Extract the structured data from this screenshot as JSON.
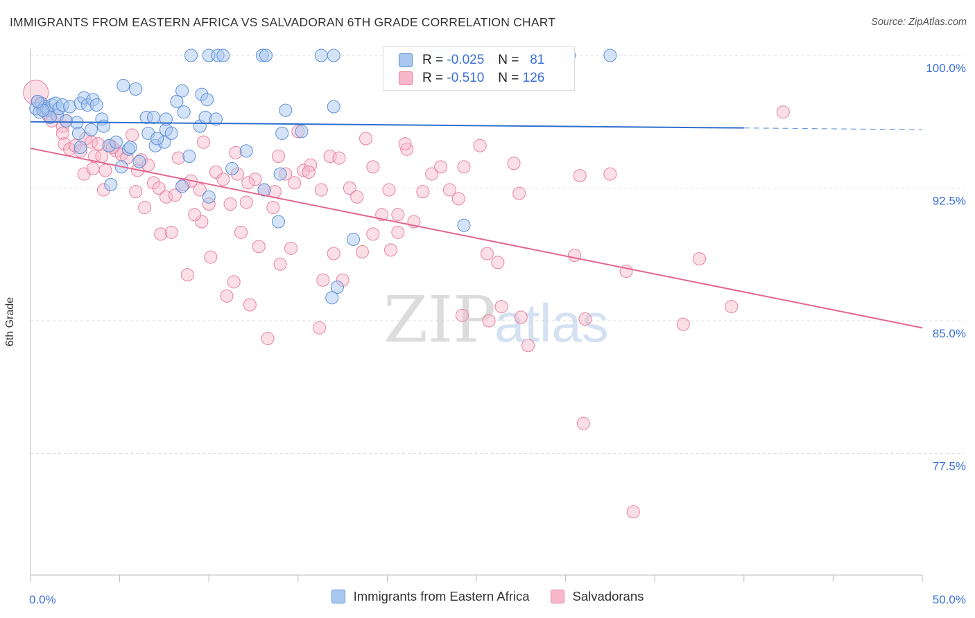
{
  "title": "IMMIGRANTS FROM EASTERN AFRICA VS SALVADORAN 6TH GRADE CORRELATION CHART",
  "source": "Source: ZipAtlas.com",
  "watermark": {
    "zip": "ZIP",
    "atlas": "atlas"
  },
  "legend": {
    "rows": [
      {
        "r_label": "R =",
        "r_value": "-0.025",
        "n_label": "N =",
        "n_value": "81"
      },
      {
        "r_label": "R =",
        "r_value": "-0.510",
        "n_label": "N =",
        "n_value": "126"
      }
    ]
  },
  "bottom_legend": {
    "series1": "Immigrants from Eastern Africa",
    "series2": "Salvadorans"
  },
  "colors": {
    "blue_fill": "#a9c8f0",
    "blue_stroke": "#5b8fd6",
    "blue_line": "#2f6fcf",
    "pink_fill": "#f6b8ca",
    "pink_stroke": "#e8809f",
    "pink_line": "#e2668f",
    "tick_label": "#3a6fd8",
    "grid": "#dddddd"
  },
  "chart_data": {
    "type": "scatter",
    "title": "IMMIGRANTS FROM EASTERN AFRICA VS SALVADORAN 6TH GRADE CORRELATION CHART",
    "xlabel": "",
    "ylabel": "6th Grade",
    "xlim": [
      0,
      50
    ],
    "ylim": [
      70.0,
      101.5
    ],
    "x_tick_labels": [
      "0.0%",
      "50.0%"
    ],
    "y_ticks": [
      100.0,
      92.5,
      85.0,
      77.5
    ],
    "y_tick_labels": [
      "100.0%",
      "92.5%",
      "85.0%",
      "77.5%"
    ],
    "grid": true,
    "legend_position": "top-center",
    "series": [
      {
        "name": "Immigrants from Eastern Africa",
        "color": "#a9c8f0",
        "R": -0.025,
        "N": 81,
        "trend": {
          "x0": 0,
          "y0": 96.25,
          "x1": 40,
          "y1": 95.9,
          "dashed_to_x": 50,
          "dashed_to_y": 95.8
        },
        "points": [
          [
            0.3,
            97.0
          ],
          [
            0.5,
            96.8
          ],
          [
            0.6,
            97.3
          ],
          [
            0.8,
            97.1
          ],
          [
            0.9,
            97.0
          ],
          [
            1.0,
            96.9
          ],
          [
            1.2,
            97.2
          ],
          [
            1.4,
            97.3
          ],
          [
            1.5,
            96.6
          ],
          [
            1.6,
            97.0
          ],
          [
            1.8,
            97.2
          ],
          [
            2.0,
            96.3
          ],
          [
            2.2,
            97.1
          ],
          [
            2.6,
            96.2
          ],
          [
            2.8,
            97.3
          ],
          [
            3.0,
            97.6
          ],
          [
            3.2,
            97.2
          ],
          [
            3.5,
            97.5
          ],
          [
            3.7,
            97.2
          ],
          [
            3.4,
            95.8
          ],
          [
            2.7,
            95.6
          ],
          [
            2.8,
            94.8
          ],
          [
            4.0,
            96.4
          ],
          [
            4.1,
            96.0
          ],
          [
            5.2,
            98.3
          ],
          [
            5.9,
            98.1
          ],
          [
            4.4,
            94.9
          ],
          [
            5.5,
            94.7
          ],
          [
            5.6,
            94.8
          ],
          [
            4.8,
            95.1
          ],
          [
            6.5,
            96.5
          ],
          [
            6.6,
            95.6
          ],
          [
            6.9,
            96.5
          ],
          [
            7.0,
            94.9
          ],
          [
            7.5,
            95.1
          ],
          [
            7.1,
            95.3
          ],
          [
            7.6,
            95.8
          ],
          [
            7.9,
            95.6
          ],
          [
            7.6,
            96.4
          ],
          [
            8.6,
            96.8
          ],
          [
            8.2,
            97.4
          ],
          [
            8.5,
            98.0
          ],
          [
            9.6,
            97.8
          ],
          [
            9.9,
            97.5
          ],
          [
            9.5,
            96.0
          ],
          [
            9.8,
            96.5
          ],
          [
            10.4,
            96.4
          ],
          [
            8.9,
            94.3
          ],
          [
            5.1,
            93.7
          ],
          [
            4.5,
            92.7
          ],
          [
            6.1,
            94.0
          ],
          [
            8.5,
            92.6
          ],
          [
            10.0,
            92.0
          ],
          [
            11.3,
            93.6
          ],
          [
            12.1,
            94.6
          ],
          [
            13.1,
            92.4
          ],
          [
            14.0,
            93.3
          ],
          [
            14.1,
            95.6
          ],
          [
            14.3,
            96.9
          ],
          [
            17.0,
            97.1
          ],
          [
            13.9,
            90.6
          ],
          [
            15.2,
            95.7
          ],
          [
            24.3,
            90.4
          ],
          [
            18.1,
            89.6
          ],
          [
            17.2,
            86.9
          ],
          [
            16.9,
            86.3
          ],
          [
            9.0,
            100.0
          ],
          [
            10.0,
            100.0
          ],
          [
            10.5,
            100.0
          ],
          [
            10.8,
            100.0
          ],
          [
            13.0,
            100.0
          ],
          [
            13.2,
            100.0
          ],
          [
            16.3,
            100.0
          ],
          [
            17.0,
            100.0
          ],
          [
            22.8,
            100.0
          ],
          [
            24.0,
            100.0
          ],
          [
            30.2,
            100.0
          ],
          [
            32.5,
            100.0
          ],
          [
            1.1,
            96.5
          ],
          [
            0.7,
            96.9
          ],
          [
            0.4,
            97.4
          ]
        ]
      },
      {
        "name": "Salvadorans",
        "color": "#f6b8ca",
        "R": -0.51,
        "N": 126,
        "trend": {
          "x0": 0,
          "y0": 94.75,
          "x1": 50,
          "y1": 84.6
        },
        "points": [
          [
            0.3,
            97.9
          ],
          [
            0.4,
            97.4
          ],
          [
            0.6,
            97.2
          ],
          [
            0.8,
            96.9
          ],
          [
            1.0,
            96.6
          ],
          [
            1.2,
            96.3
          ],
          [
            1.5,
            96.6
          ],
          [
            1.8,
            96.0
          ],
          [
            2.0,
            96.3
          ],
          [
            1.8,
            95.6
          ],
          [
            1.9,
            95.0
          ],
          [
            2.2,
            94.7
          ],
          [
            2.5,
            94.9
          ],
          [
            2.8,
            94.6
          ],
          [
            3.1,
            95.3
          ],
          [
            3.4,
            95.1
          ],
          [
            3.6,
            94.3
          ],
          [
            3.8,
            95.0
          ],
          [
            4.0,
            94.3
          ],
          [
            4.2,
            93.5
          ],
          [
            4.5,
            94.9
          ],
          [
            4.8,
            94.6
          ],
          [
            5.1,
            94.4
          ],
          [
            5.4,
            94.2
          ],
          [
            5.7,
            95.5
          ],
          [
            6.0,
            93.5
          ],
          [
            6.2,
            94.1
          ],
          [
            6.6,
            93.8
          ],
          [
            6.9,
            92.8
          ],
          [
            7.2,
            92.5
          ],
          [
            7.6,
            92.0
          ],
          [
            8.1,
            92.1
          ],
          [
            8.6,
            92.7
          ],
          [
            9.0,
            92.9
          ],
          [
            9.5,
            92.4
          ],
          [
            10.0,
            91.6
          ],
          [
            10.4,
            93.4
          ],
          [
            10.8,
            93.0
          ],
          [
            11.2,
            91.6
          ],
          [
            11.6,
            93.3
          ],
          [
            12.1,
            91.7
          ],
          [
            12.6,
            93.0
          ],
          [
            13.1,
            92.4
          ],
          [
            13.6,
            91.4
          ],
          [
            13.9,
            94.3
          ],
          [
            14.3,
            93.3
          ],
          [
            14.8,
            92.8
          ],
          [
            15.3,
            93.5
          ],
          [
            15.7,
            93.8
          ],
          [
            16.3,
            92.4
          ],
          [
            16.8,
            94.3
          ],
          [
            17.3,
            94.2
          ],
          [
            17.9,
            92.5
          ],
          [
            18.3,
            92.0
          ],
          [
            18.8,
            95.3
          ],
          [
            19.2,
            93.7
          ],
          [
            19.7,
            91.0
          ],
          [
            20.1,
            92.4
          ],
          [
            20.6,
            91.0
          ],
          [
            21.1,
            94.7
          ],
          [
            21.5,
            90.6
          ],
          [
            22.0,
            92.3
          ],
          [
            22.5,
            93.3
          ],
          [
            23.0,
            93.7
          ],
          [
            23.5,
            92.4
          ],
          [
            24.0,
            91.9
          ],
          [
            24.3,
            93.7
          ],
          [
            3.0,
            93.3
          ],
          [
            4.1,
            92.4
          ],
          [
            6.4,
            91.4
          ],
          [
            7.3,
            89.9
          ],
          [
            7.9,
            90.0
          ],
          [
            8.8,
            87.6
          ],
          [
            9.6,
            90.6
          ],
          [
            10.1,
            88.6
          ],
          [
            11.0,
            86.4
          ],
          [
            11.4,
            87.2
          ],
          [
            11.8,
            90.0
          ],
          [
            12.3,
            85.9
          ],
          [
            12.8,
            89.2
          ],
          [
            13.3,
            84.0
          ],
          [
            14.0,
            88.2
          ],
          [
            14.6,
            89.1
          ],
          [
            15.0,
            95.7
          ],
          [
            16.2,
            84.6
          ],
          [
            16.4,
            87.3
          ],
          [
            17.0,
            88.8
          ],
          [
            17.5,
            87.3
          ],
          [
            18.6,
            88.9
          ],
          [
            19.2,
            89.9
          ],
          [
            20.2,
            89.0
          ],
          [
            20.6,
            90.0
          ],
          [
            21.0,
            95.0
          ],
          [
            24.2,
            85.3
          ],
          [
            25.6,
            88.8
          ],
          [
            25.7,
            85.0
          ],
          [
            26.2,
            88.3
          ],
          [
            26.4,
            85.8
          ],
          [
            27.5,
            85.2
          ],
          [
            27.4,
            92.2
          ],
          [
            27.9,
            83.6
          ],
          [
            30.5,
            88.7
          ],
          [
            30.8,
            93.2
          ],
          [
            31.0,
            79.2
          ],
          [
            31.1,
            85.1
          ],
          [
            32.5,
            93.3
          ],
          [
            33.4,
            87.8
          ],
          [
            33.8,
            74.2
          ],
          [
            36.6,
            84.8
          ],
          [
            37.5,
            88.5
          ],
          [
            39.3,
            85.8
          ],
          [
            42.2,
            96.8
          ],
          [
            3.5,
            93.6
          ],
          [
            4.6,
            94.8
          ],
          [
            8.3,
            94.2
          ],
          [
            9.7,
            95.1
          ],
          [
            11.5,
            94.5
          ],
          [
            12.2,
            92.8
          ],
          [
            13.7,
            92.3
          ],
          [
            15.6,
            93.4
          ],
          [
            27.1,
            93.9
          ],
          [
            25.2,
            94.9
          ],
          [
            5.9,
            92.3
          ],
          [
            9.2,
            91.0
          ]
        ]
      }
    ]
  }
}
